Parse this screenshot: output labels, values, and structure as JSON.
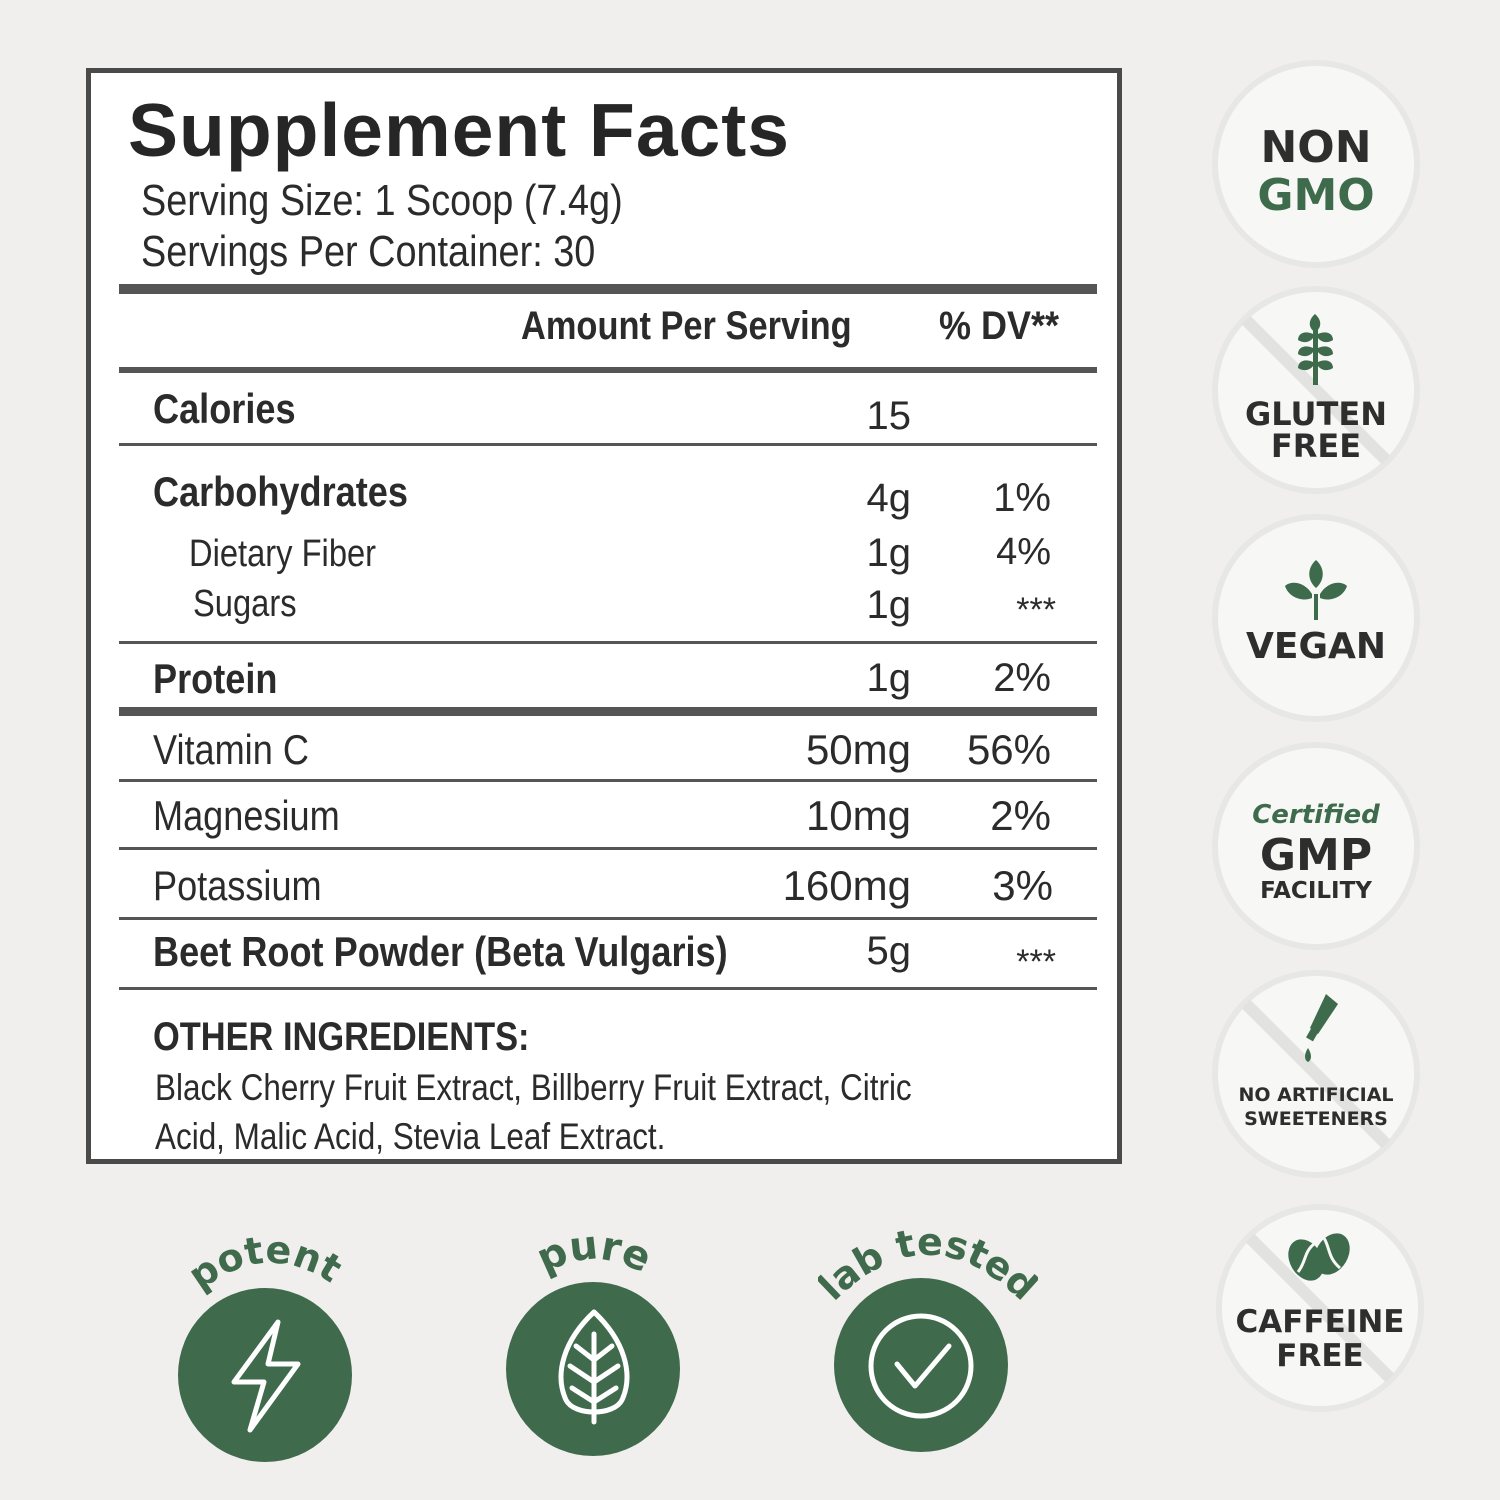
{
  "facts": {
    "title": "Supplement Facts",
    "serving_size": "Serving Size: 1 Scoop (7.4g)",
    "servings_per_container": "Servings Per Container: 30",
    "header_amount": "Amount Per Serving",
    "header_dv": "% DV**",
    "rows": [
      {
        "name": "Calories",
        "amount": "15",
        "dv": ""
      },
      {
        "name": "Carbohydrates",
        "amount": "4g",
        "dv": "1%"
      },
      {
        "name": "Dietary Fiber",
        "amount": "1g",
        "dv": "4%"
      },
      {
        "name": "Sugars",
        "amount": "1g",
        "dv": "***"
      },
      {
        "name": "Protein",
        "amount": "1g",
        "dv": "2%"
      },
      {
        "name": "Vitamin C",
        "amount": "50mg",
        "dv": "56%"
      },
      {
        "name": "Magnesium",
        "amount": "10mg",
        "dv": "2%"
      },
      {
        "name": "Potassium",
        "amount": "160mg",
        "dv": "3%"
      },
      {
        "name": "Beet Root Powder (Beta Vulgaris)",
        "amount": "5g",
        "dv": "***"
      }
    ],
    "other_heading": "OTHER INGREDIENTS:",
    "other_line1": "Black Cherry Fruit Extract, Billberry Fruit Extract, Citric",
    "other_line2": "Acid, Malic Acid, Stevia Leaf Extract."
  },
  "badges": {
    "non_gmo": [
      "NON",
      "GMO"
    ],
    "gluten_free": [
      "GLUTEN",
      "FREE"
    ],
    "vegan": "VEGAN",
    "gmp": [
      "Certified",
      "GMP",
      "FACILITY"
    ],
    "no_artificial": [
      "NO ARTIFICIAL",
      "SWEETENERS"
    ],
    "caffeine_free": [
      "CAFFEINE",
      "FREE"
    ]
  },
  "features": {
    "potent": "potent",
    "pure": "pure",
    "lab_tested": "lab tested"
  },
  "colors": {
    "brand_green": "#3f6a4c",
    "text_dark": "#2b2b2b",
    "background": "#f0efee"
  },
  "icons": [
    "grain-icon",
    "leaves-icon",
    "dropper-icon",
    "coffee-bean-icon",
    "lightning-icon",
    "leaf-icon",
    "check-circle-icon"
  ]
}
